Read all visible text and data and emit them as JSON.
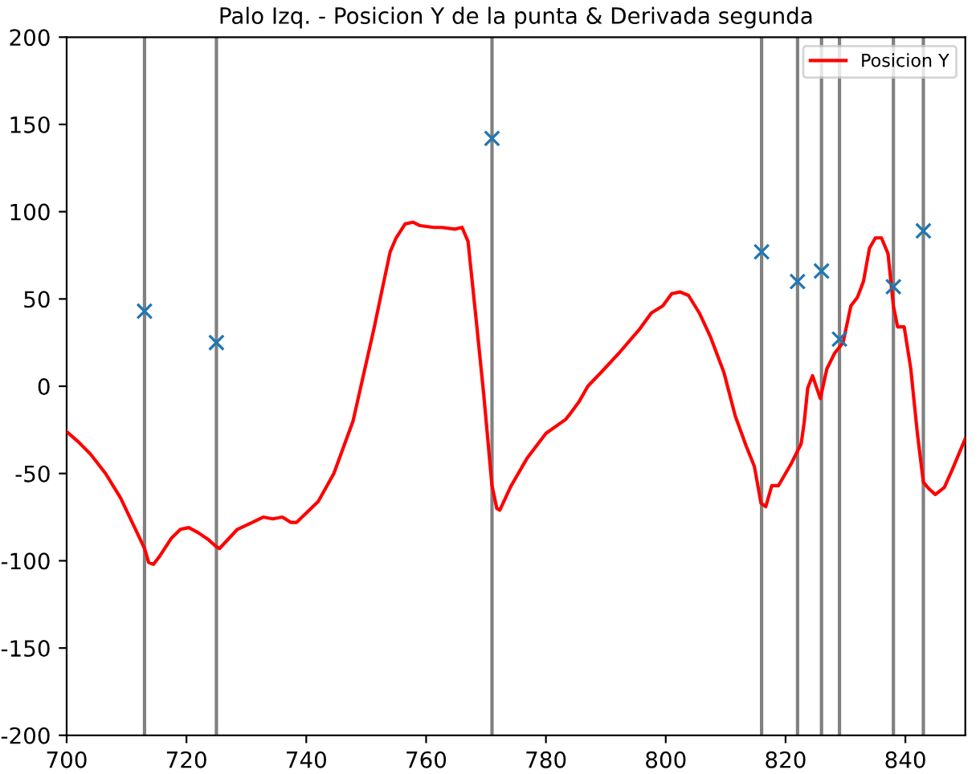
{
  "chart_data": {
    "type": "line",
    "title": "Palo Izq. - Posicion Y de la punta & Derivada segunda",
    "xlim": [
      700,
      850
    ],
    "xticks": [
      700,
      720,
      740,
      760,
      780,
      800,
      820,
      840
    ],
    "ylim": [
      -200,
      200
    ],
    "yticks": [
      -200,
      -150,
      -100,
      -50,
      0,
      50,
      100,
      150,
      200
    ],
    "grid": false,
    "legend": "top right",
    "series": [
      {
        "name": "Posicion Y",
        "color": "#ff0000",
        "marker": "none",
        "line_style": "solid",
        "x": [
          700,
          702,
          704,
          706.5,
          709,
          711.5,
          713,
          713.7,
          714.5,
          715.6,
          717.5,
          719,
          720.4,
          722,
          723.7,
          725,
          725.5,
          726.6,
          728.5,
          731,
          732.8,
          734.4,
          736,
          737.4,
          738.4,
          742,
          744.6,
          747.8,
          751.3,
          752.7,
          754,
          755,
          756.5,
          757.8,
          759,
          761.3,
          762.6,
          764.8,
          766,
          767,
          768.3,
          769.6,
          771,
          771.8,
          772.3,
          774.2,
          776.9,
          780,
          783.3,
          784,
          785.5,
          787,
          789.5,
          792.2,
          795.7,
          797.6,
          799.5,
          801,
          802.4,
          803.8,
          805.6,
          807.5,
          809.7,
          811.6,
          813.4,
          814.8,
          815.9,
          816.7,
          817.7,
          818.8,
          821,
          822.6,
          823.1,
          823.7,
          824.5,
          825.8,
          826.9,
          828.2,
          829.6,
          830.9,
          832,
          833,
          834,
          835,
          836,
          837.1,
          838,
          838.7,
          839.8,
          840.9,
          842,
          843,
          844,
          845,
          846.5,
          847.8,
          850
        ],
        "values": [
          -26,
          -32,
          -39,
          -50,
          -64,
          -82,
          -93,
          -101,
          -102,
          -97,
          -87,
          -82,
          -81,
          -84,
          -88,
          -92,
          -93,
          -89,
          -82,
          -78,
          -75,
          -76,
          -75,
          -78,
          -78,
          -66,
          -50,
          -20,
          33,
          56,
          77,
          85,
          93,
          94,
          92,
          91,
          91,
          90,
          91,
          83,
          40,
          -4,
          -57,
          -70,
          -71,
          -57,
          -41,
          -27,
          -19,
          -16,
          -9,
          0,
          9,
          19,
          33,
          42,
          46,
          53,
          54,
          52,
          42,
          28,
          8,
          -17,
          -34,
          -46,
          -67,
          -69,
          -57,
          -57,
          -44,
          -33,
          -21,
          -1,
          6,
          -7,
          10,
          19,
          25,
          46,
          51,
          60,
          79,
          85,
          85,
          76,
          46,
          34,
          34,
          10,
          -27,
          -55,
          -59,
          -62,
          -58,
          -48,
          -30
        ]
      },
      {
        "type": "scatter",
        "color": "#1f77b4",
        "marker": "cross",
        "x": [
          713,
          725,
          771,
          816,
          822,
          826,
          829,
          838,
          843
        ],
        "values": [
          43,
          25,
          142,
          77,
          60,
          66,
          27,
          57,
          89
        ]
      }
    ],
    "ref_lines": [
      {
        "axis": "x",
        "value": 713,
        "color": "#808080"
      },
      {
        "axis": "x",
        "value": 725,
        "color": "#808080"
      },
      {
        "axis": "x",
        "value": 771,
        "color": "#808080"
      },
      {
        "axis": "x",
        "value": 816,
        "color": "#808080"
      },
      {
        "axis": "x",
        "value": 822,
        "color": "#808080"
      },
      {
        "axis": "x",
        "value": 826,
        "color": "#808080"
      },
      {
        "axis": "x",
        "value": 829,
        "color": "#808080"
      },
      {
        "axis": "x",
        "value": 838,
        "color": "#808080"
      },
      {
        "axis": "x",
        "value": 843,
        "color": "#808080"
      }
    ]
  }
}
